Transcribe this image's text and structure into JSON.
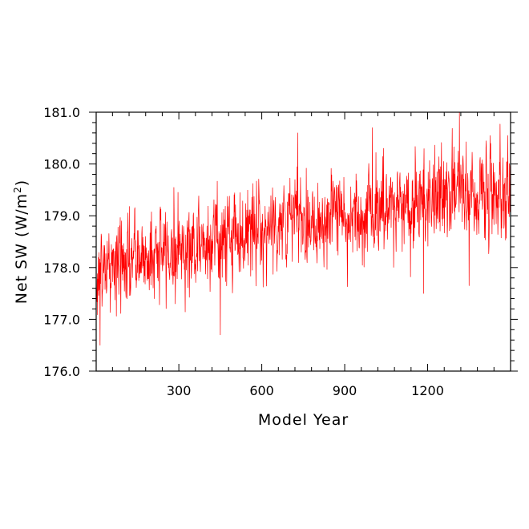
{
  "chart_data": {
    "type": "line",
    "title": "",
    "xlabel": "Model Year",
    "ylabel_prefix": "Net SW (W/m",
    "ylabel_superscript": "2",
    "ylabel_suffix": ")",
    "xlim": [
      1,
      1500
    ],
    "ylim": [
      176.0,
      181.0
    ],
    "x_ticks": [
      300,
      600,
      900,
      1200
    ],
    "x_tick_labels": [
      "300",
      "600",
      "900",
      "1200"
    ],
    "y_ticks": [
      176.0,
      177.0,
      178.0,
      179.0,
      180.0,
      181.0
    ],
    "y_tick_labels": [
      "176.0",
      "177.0",
      "178.0",
      "179.0",
      "180.0",
      "181.0"
    ],
    "grid": false,
    "legend": "none",
    "series_color": "#ff0000",
    "trend_knots": {
      "x": [
        1,
        100,
        250,
        400,
        550,
        700,
        900,
        1050,
        1200,
        1350,
        1500
      ],
      "y": [
        177.9,
        178.1,
        178.3,
        178.5,
        178.7,
        178.9,
        179.0,
        179.1,
        179.35,
        179.45,
        179.5
      ]
    },
    "noise_std": 0.42,
    "notable_points": [
      {
        "x": 15,
        "y": 176.5
      },
      {
        "x": 450,
        "y": 176.7
      },
      {
        "x": 730,
        "y": 180.6
      },
      {
        "x": 1000,
        "y": 180.7
      },
      {
        "x": 1185,
        "y": 177.5
      },
      {
        "x": 1315,
        "y": 181.0
      },
      {
        "x": 1350,
        "y": 177.65
      },
      {
        "x": 1490,
        "y": 180.55
      }
    ]
  }
}
